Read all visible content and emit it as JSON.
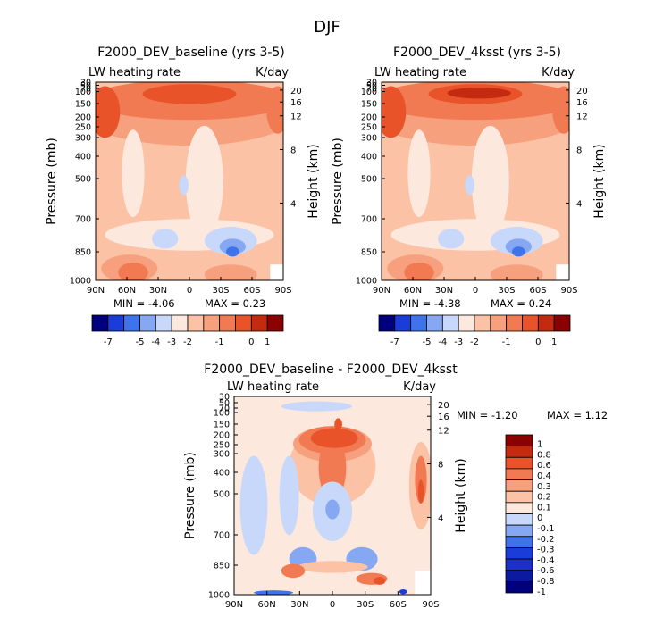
{
  "figure": {
    "title": "DJF",
    "colors": {
      "deep_blue": "#00007f",
      "blue": "#1a3cd9",
      "mid_blue": "#3f73ec",
      "light_blue": "#86a8f3",
      "pale_blue": "#c8d8fa",
      "very_pale": "#fde8de",
      "pale_orange": "#fbc2a6",
      "light_orange": "#f7a07e",
      "orange": "#f27a52",
      "red_orange": "#e8532a",
      "red": "#c42a0f",
      "dark_red": "#8b0000"
    }
  },
  "chart_data": [
    {
      "type": "heatmap",
      "id": "panel_baseline",
      "title": "F2000_DEV_baseline (yrs 3-5)",
      "variable_label": "LW heating rate",
      "units_label": "K/day",
      "ylabel": "Pressure (mb)",
      "ylabel_right": "Height (km)",
      "x_ticks": [
        "90N",
        "60N",
        "30N",
        "0",
        "30S",
        "60S",
        "90S"
      ],
      "y_ticks": [
        "30",
        "50",
        "70",
        "100",
        "150",
        "200",
        "250",
        "300",
        "400",
        "500",
        "700",
        "850",
        "1000"
      ],
      "y_ticks_right": [
        "20",
        "16",
        "12",
        "8",
        "4"
      ],
      "stats": {
        "min_label": "MIN =",
        "min_value": "-4.06",
        "max_label": "MAX =",
        "max_value": "0.23"
      },
      "colorbar_labels": [
        "-7",
        "-5",
        "-4",
        "-3",
        "-2",
        "-1",
        "0",
        "1"
      ]
    },
    {
      "type": "heatmap",
      "id": "panel_4ksst",
      "title": "F2000_DEV_4ksst (yrs 3-5)",
      "variable_label": "LW heating rate",
      "units_label": "K/day",
      "ylabel": "Pressure (mb)",
      "ylabel_right": "Height (km)",
      "x_ticks": [
        "90N",
        "60N",
        "30N",
        "0",
        "30S",
        "60S",
        "90S"
      ],
      "y_ticks": [
        "30",
        "50",
        "70",
        "100",
        "150",
        "200",
        "250",
        "300",
        "400",
        "500",
        "700",
        "850",
        "1000"
      ],
      "y_ticks_right": [
        "20",
        "16",
        "12",
        "8",
        "4"
      ],
      "stats": {
        "min_label": "MIN =",
        "min_value": "-4.38",
        "max_label": "MAX =",
        "max_value": "0.24"
      },
      "colorbar_labels": [
        "-7",
        "-5",
        "-4",
        "-3",
        "-2",
        "-1",
        "0",
        "1"
      ]
    },
    {
      "type": "heatmap",
      "id": "panel_diff",
      "title": "F2000_DEV_baseline - F2000_DEV_4ksst",
      "variable_label": "LW heating rate",
      "units_label": "K/day",
      "ylabel": "Pressure (mb)",
      "ylabel_right": "Height (km)",
      "x_ticks": [
        "90N",
        "60N",
        "30N",
        "0",
        "30S",
        "60S",
        "90S"
      ],
      "y_ticks": [
        "30",
        "50",
        "70",
        "100",
        "150",
        "200",
        "250",
        "300",
        "400",
        "500",
        "700",
        "850",
        "1000"
      ],
      "y_ticks_right": [
        "20",
        "16",
        "12",
        "8",
        "4"
      ],
      "stats": {
        "min_label": "MIN =",
        "min_value": "-1.20",
        "max_label": "MAX =",
        "max_value": "1.12"
      },
      "colorbar_labels": [
        "1",
        "0.8",
        "0.6",
        "0.4",
        "0.3",
        "0.2",
        "0.1",
        "0",
        "-0.1",
        "-0.2",
        "-0.3",
        "-0.4",
        "-0.6",
        "-0.8",
        "-1"
      ]
    }
  ]
}
